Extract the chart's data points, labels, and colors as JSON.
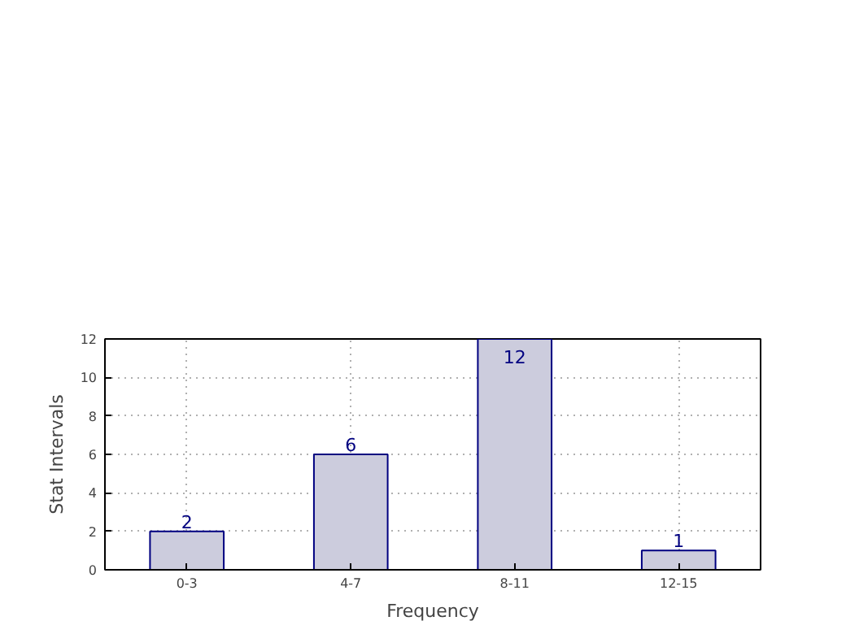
{
  "chart_data": {
    "type": "bar",
    "xlabel": "Frequency",
    "ylabel": "Stat Intervals",
    "categories": [
      "0-3",
      "4-7",
      "8-11",
      "12-15"
    ],
    "values": [
      2,
      6,
      12,
      1
    ],
    "color": "#ccccdd",
    "ylim": [
      0,
      12
    ],
    "yticks": [
      0,
      2,
      4,
      6,
      8,
      10,
      12
    ],
    "grid": true,
    "data_labels": true
  }
}
